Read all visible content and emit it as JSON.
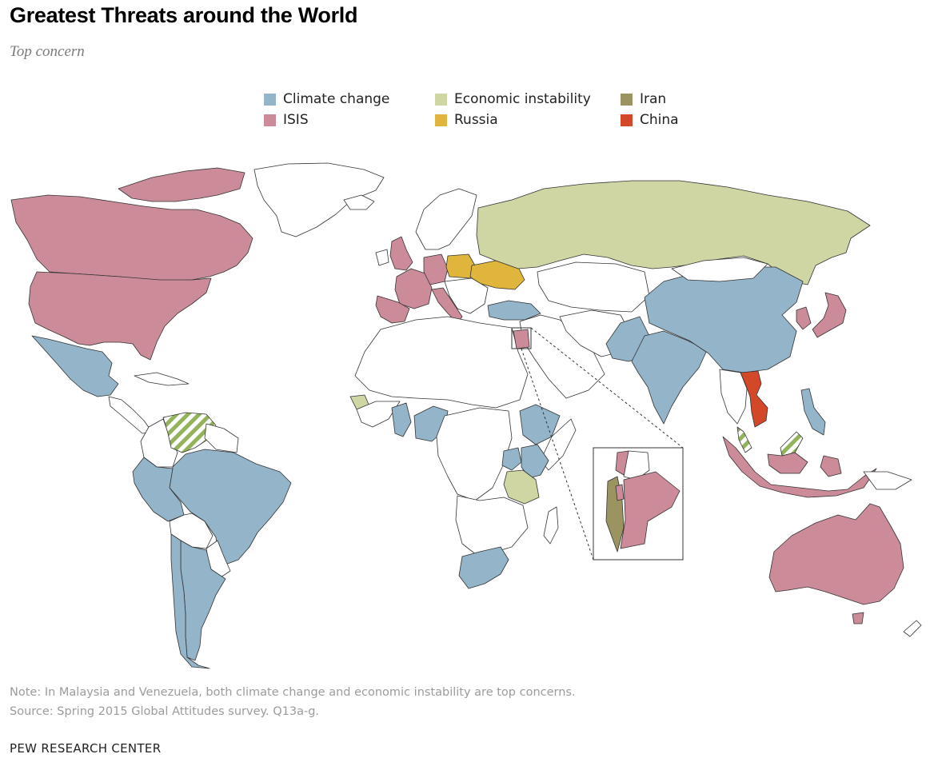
{
  "header": {
    "title": "Greatest Threats around the World",
    "subtitle": "Top concern"
  },
  "legend": {
    "items": [
      {
        "key": "climate",
        "label": "Climate change",
        "color": "#93b4c9"
      },
      {
        "key": "isis",
        "label": "ISIS",
        "color": "#cc8b98"
      },
      {
        "key": "economic",
        "label": "Economic instability",
        "color": "#cfd5a3"
      },
      {
        "key": "russia",
        "label": "Russia",
        "color": "#dfb53c"
      },
      {
        "key": "iran",
        "label": "Iran",
        "color": "#9c9460"
      },
      {
        "key": "china",
        "label": "China",
        "color": "#d4482a"
      }
    ]
  },
  "map": {
    "colors": {
      "land_unsurveyed": "#ffffff",
      "border": "#333333",
      "mixed_stripe": "#93b35a"
    },
    "regions": [
      {
        "name": "canada",
        "category": "isis"
      },
      {
        "name": "united-states",
        "category": "isis"
      },
      {
        "name": "mexico",
        "category": "climate"
      },
      {
        "name": "venezuela",
        "category": "climate+economic"
      },
      {
        "name": "brazil",
        "category": "climate"
      },
      {
        "name": "peru",
        "category": "climate"
      },
      {
        "name": "argentina",
        "category": "climate"
      },
      {
        "name": "chile",
        "category": "climate"
      },
      {
        "name": "united-kingdom",
        "category": "isis"
      },
      {
        "name": "france",
        "category": "isis"
      },
      {
        "name": "spain",
        "category": "isis"
      },
      {
        "name": "germany",
        "category": "isis"
      },
      {
        "name": "italy",
        "category": "isis"
      },
      {
        "name": "poland",
        "category": "russia"
      },
      {
        "name": "ukraine",
        "category": "russia"
      },
      {
        "name": "russia",
        "category": "economic"
      },
      {
        "name": "turkey",
        "category": "climate"
      },
      {
        "name": "lebanon",
        "category": "isis"
      },
      {
        "name": "jordan",
        "category": "isis"
      },
      {
        "name": "israel",
        "category": "iran"
      },
      {
        "name": "palestinian-territories",
        "category": "isis"
      },
      {
        "name": "india",
        "category": "climate"
      },
      {
        "name": "pakistan",
        "category": "climate"
      },
      {
        "name": "china",
        "category": "climate"
      },
      {
        "name": "japan",
        "category": "isis"
      },
      {
        "name": "south-korea",
        "category": "isis"
      },
      {
        "name": "vietnam",
        "category": "china"
      },
      {
        "name": "philippines",
        "category": "climate"
      },
      {
        "name": "malaysia",
        "category": "climate+economic"
      },
      {
        "name": "indonesia",
        "category": "isis"
      },
      {
        "name": "australia",
        "category": "isis"
      },
      {
        "name": "senegal",
        "category": "economic"
      },
      {
        "name": "ghana",
        "category": "climate"
      },
      {
        "name": "burkina-faso",
        "category": "climate"
      },
      {
        "name": "nigeria",
        "category": "climate"
      },
      {
        "name": "ethiopia",
        "category": "climate"
      },
      {
        "name": "uganda",
        "category": "climate"
      },
      {
        "name": "kenya",
        "category": "climate"
      },
      {
        "name": "tanzania",
        "category": "economic"
      },
      {
        "name": "south-africa",
        "category": "climate"
      }
    ]
  },
  "footer": {
    "note": "Note: In Malaysia and Venezuela, both climate change and economic instability are top concerns.",
    "source": "Source: Spring 2015 Global Attitudes survey. Q13a-g.",
    "org": "PEW RESEARCH CENTER"
  }
}
